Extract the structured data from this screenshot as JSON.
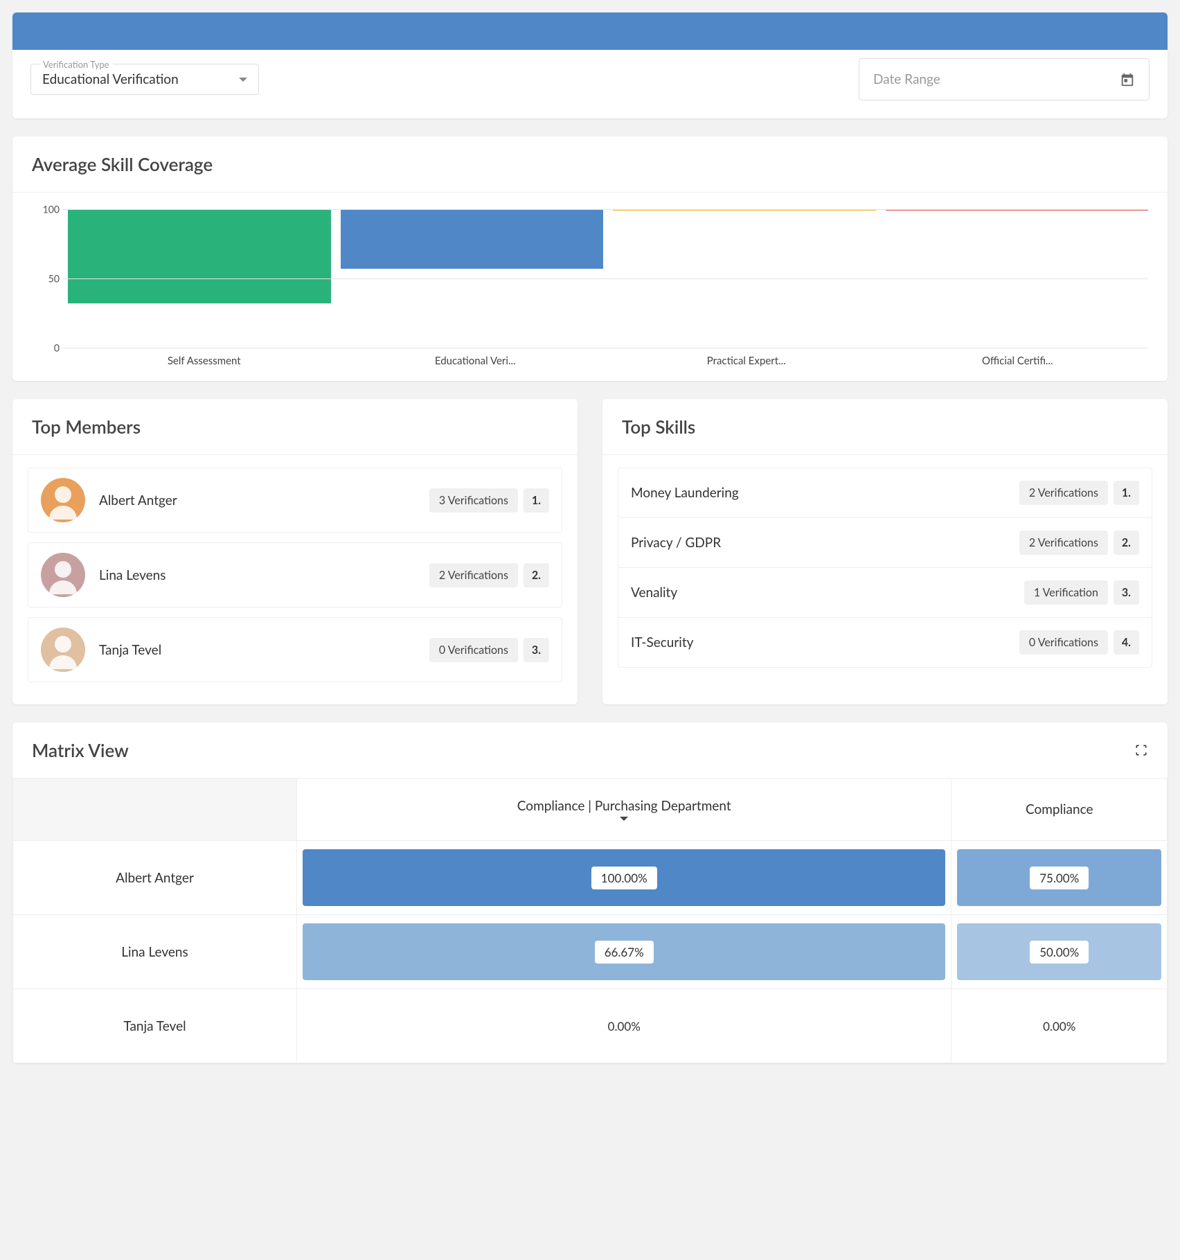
{
  "filters": {
    "verification_type_label": "Verification Type",
    "verification_type_value": "Educational Verification",
    "date_range_placeholder": "Date Range"
  },
  "skill_coverage": {
    "title": "Average Skill Coverage",
    "type": "bar",
    "ylim": [
      0,
      100
    ],
    "yticks": [
      0,
      50,
      100
    ],
    "grid_color": "#e5e5e5",
    "categories": [
      "Self Assessment",
      "Educational Veri...",
      "Practical Expert...",
      "Official Certifi..."
    ],
    "values": [
      68,
      43,
      1,
      1
    ],
    "bar_colors": [
      "#2ab27b",
      "#5087c7",
      "#f0b838",
      "#e05c5c"
    ],
    "label_fontsize": 15,
    "axis_fontsize": 14
  },
  "top_members": {
    "title": "Top Members",
    "items": [
      {
        "name": "Albert Antger",
        "verifications": "3 Verifications",
        "rank": "1.",
        "avatar_bg": "#e8a05c"
      },
      {
        "name": "Lina Levens",
        "verifications": "2 Verifications",
        "rank": "2.",
        "avatar_bg": "#c9a0a0"
      },
      {
        "name": "Tanja Tevel",
        "verifications": "0 Verifications",
        "rank": "3.",
        "avatar_bg": "#e0c0a0"
      }
    ]
  },
  "top_skills": {
    "title": "Top Skills",
    "items": [
      {
        "name": "Money Laundering",
        "verifications": "2 Verifications",
        "rank": "1."
      },
      {
        "name": "Privacy / GDPR",
        "verifications": "2 Verifications",
        "rank": "2."
      },
      {
        "name": "Venality",
        "verifications": "1 Verification",
        "rank": "3."
      },
      {
        "name": "IT-Security",
        "verifications": "0 Verifications",
        "rank": "4."
      }
    ]
  },
  "matrix": {
    "title": "Matrix View",
    "columns": [
      "Compliance | Purchasing Department",
      "Compliance"
    ],
    "column_expandable": [
      true,
      false
    ],
    "rows": [
      "Albert Antger",
      "Lina Levens",
      "Tanja Tevel"
    ],
    "cells": [
      [
        {
          "value": "100.00%",
          "bg": "#5087c7",
          "pill": true
        },
        {
          "value": "75.00%",
          "bg": "#7ea9d6",
          "pill": true
        }
      ],
      [
        {
          "value": "66.67%",
          "bg": "#8fb4da",
          "pill": true
        },
        {
          "value": "50.00%",
          "bg": "#a7c4e2",
          "pill": true
        }
      ],
      [
        {
          "value": "0.00%",
          "bg": "#ffffff",
          "pill": false
        },
        {
          "value": "0.00%",
          "bg": "#ffffff",
          "pill": false
        }
      ]
    ]
  }
}
